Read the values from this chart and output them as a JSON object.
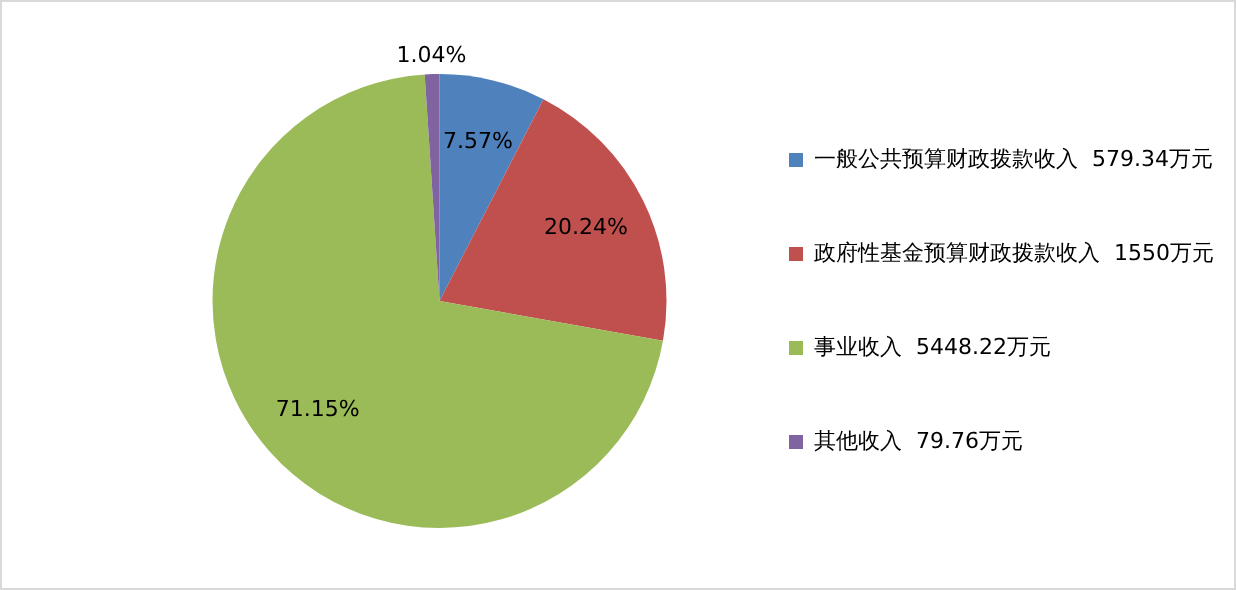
{
  "chart_data": {
    "type": "pie",
    "categories": [
      "一般公共预算财政拨款收入  579.34万元",
      "政府性基金预算财政拨款收入  1550万元",
      "事业收入  5448.22万元",
      "其他收入  79.76万元"
    ],
    "values": [
      7.57,
      20.24,
      71.15,
      1.04
    ],
    "value_labels": [
      "7.57%",
      "20.24%",
      "71.15%",
      "1.04%"
    ],
    "colors": [
      "#4f81bd",
      "#c0504d",
      "#9bbb59",
      "#8064a2"
    ],
    "legend": "right"
  }
}
